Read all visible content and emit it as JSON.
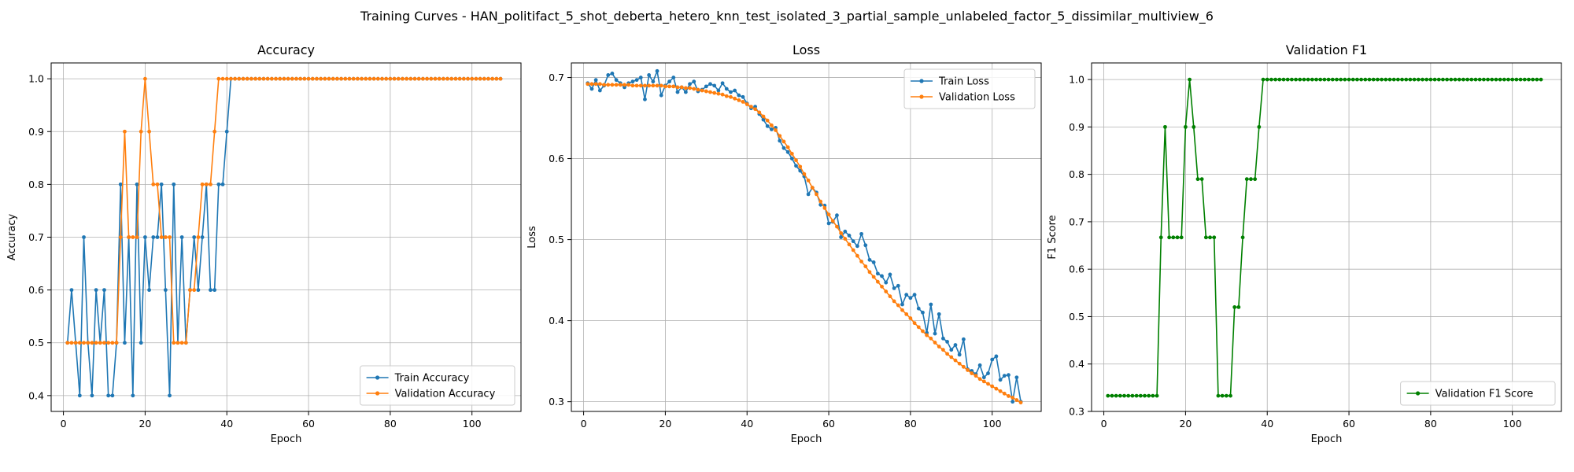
{
  "figure": {
    "suptitle": "Training Curves - HAN_politifact_5_shot_deberta_hetero_knn_test_isolated_3_partial_sample_unlabeled_factor_5_dissimilar_multiview_6"
  },
  "chart_data": [
    {
      "type": "line",
      "title": "Accuracy",
      "xlabel": "Epoch",
      "ylabel": "Accuracy",
      "xlim": [
        -3,
        112
      ],
      "ylim": [
        0.37,
        1.03
      ],
      "xticks": [
        0,
        20,
        40,
        60,
        80,
        100
      ],
      "yticks": [
        0.4,
        0.5,
        0.6,
        0.7,
        0.8,
        0.9,
        1.0
      ],
      "ytick_labels": [
        "0.4",
        "0.5",
        "0.6",
        "0.7",
        "0.8",
        "0.9",
        "1.0"
      ],
      "grid": true,
      "legend_position": "lower-right",
      "series": [
        {
          "name": "Train Accuracy",
          "color": "#1f77b4",
          "x_start": 1,
          "values": [
            0.5,
            0.6,
            0.5,
            0.4,
            0.7,
            0.5,
            0.4,
            0.6,
            0.5,
            0.6,
            0.4,
            0.4,
            0.5,
            0.8,
            0.5,
            0.7,
            0.4,
            0.8,
            0.5,
            0.7,
            0.6,
            0.7,
            0.7,
            0.8,
            0.6,
            0.4,
            0.8,
            0.5,
            0.7,
            0.5,
            0.6,
            0.7,
            0.6,
            0.7,
            0.8,
            0.6,
            0.6,
            0.8,
            0.8,
            0.9,
            1.0,
            1.0,
            1.0,
            1.0,
            1.0,
            1.0,
            1.0,
            1.0,
            1.0,
            1.0,
            1.0,
            1.0,
            1.0,
            1.0,
            1.0,
            1.0,
            1.0,
            1.0,
            1.0,
            1.0,
            1.0,
            1.0,
            1.0,
            1.0,
            1.0,
            1.0,
            1.0,
            1.0,
            1.0,
            1.0,
            1.0,
            1.0,
            1.0,
            1.0,
            1.0,
            1.0,
            1.0,
            1.0,
            1.0,
            1.0,
            1.0,
            1.0,
            1.0,
            1.0,
            1.0,
            1.0,
            1.0,
            1.0,
            1.0,
            1.0,
            1.0,
            1.0,
            1.0,
            1.0,
            1.0,
            1.0,
            1.0,
            1.0,
            1.0,
            1.0,
            1.0,
            1.0,
            1.0,
            1.0,
            1.0,
            1.0,
            1.0
          ]
        },
        {
          "name": "Validation Accuracy",
          "color": "#ff7f0e",
          "x_start": 1,
          "values": [
            0.5,
            0.5,
            0.5,
            0.5,
            0.5,
            0.5,
            0.5,
            0.5,
            0.5,
            0.5,
            0.5,
            0.5,
            0.5,
            0.7,
            0.9,
            0.7,
            0.7,
            0.7,
            0.9,
            1.0,
            0.9,
            0.8,
            0.8,
            0.7,
            0.7,
            0.7,
            0.5,
            0.5,
            0.5,
            0.5,
            0.6,
            0.6,
            0.7,
            0.8,
            0.8,
            0.8,
            0.9,
            1.0,
            1.0,
            1.0,
            1.0,
            1.0,
            1.0,
            1.0,
            1.0,
            1.0,
            1.0,
            1.0,
            1.0,
            1.0,
            1.0,
            1.0,
            1.0,
            1.0,
            1.0,
            1.0,
            1.0,
            1.0,
            1.0,
            1.0,
            1.0,
            1.0,
            1.0,
            1.0,
            1.0,
            1.0,
            1.0,
            1.0,
            1.0,
            1.0,
            1.0,
            1.0,
            1.0,
            1.0,
            1.0,
            1.0,
            1.0,
            1.0,
            1.0,
            1.0,
            1.0,
            1.0,
            1.0,
            1.0,
            1.0,
            1.0,
            1.0,
            1.0,
            1.0,
            1.0,
            1.0,
            1.0,
            1.0,
            1.0,
            1.0,
            1.0,
            1.0,
            1.0,
            1.0,
            1.0,
            1.0,
            1.0,
            1.0,
            1.0,
            1.0,
            1.0,
            1.0
          ]
        }
      ]
    },
    {
      "type": "line",
      "title": "Loss",
      "xlabel": "Epoch",
      "ylabel": "Loss",
      "xlim": [
        -3,
        112
      ],
      "ylim": [
        0.288,
        0.718
      ],
      "xticks": [
        0,
        20,
        40,
        60,
        80,
        100
      ],
      "yticks": [
        0.3,
        0.4,
        0.5,
        0.6,
        0.7
      ],
      "ytick_labels": [
        "0.3",
        "0.4",
        "0.5",
        "0.6",
        "0.7"
      ],
      "grid": true,
      "legend_position": "upper-right",
      "series": [
        {
          "name": "Train Loss",
          "color": "#1f77b4",
          "x_start": 1,
          "values": [
            0.693,
            0.686,
            0.697,
            0.684,
            0.69,
            0.703,
            0.705,
            0.697,
            0.693,
            0.688,
            0.693,
            0.695,
            0.697,
            0.7,
            0.673,
            0.703,
            0.695,
            0.708,
            0.678,
            0.69,
            0.695,
            0.7,
            0.682,
            0.688,
            0.682,
            0.692,
            0.695,
            0.683,
            0.685,
            0.689,
            0.692,
            0.69,
            0.684,
            0.693,
            0.686,
            0.682,
            0.684,
            0.678,
            0.676,
            0.668,
            0.662,
            0.664,
            0.655,
            0.648,
            0.64,
            0.636,
            0.638,
            0.622,
            0.613,
            0.608,
            0.6,
            0.591,
            0.585,
            0.578,
            0.556,
            0.564,
            0.558,
            0.543,
            0.542,
            0.52,
            0.522,
            0.53,
            0.503,
            0.51,
            0.505,
            0.498,
            0.492,
            0.507,
            0.493,
            0.475,
            0.472,
            0.458,
            0.455,
            0.447,
            0.457,
            0.44,
            0.443,
            0.42,
            0.432,
            0.428,
            0.432,
            0.415,
            0.41,
            0.385,
            0.42,
            0.384,
            0.408,
            0.378,
            0.374,
            0.364,
            0.37,
            0.358,
            0.377,
            0.34,
            0.338,
            0.334,
            0.345,
            0.33,
            0.335,
            0.352,
            0.356,
            0.327,
            0.332,
            0.333,
            0.3,
            0.33,
            0.3
          ]
        },
        {
          "name": "Validation Loss",
          "color": "#ff7f0e",
          "x_start": 1,
          "values": [
            0.692,
            0.692,
            0.692,
            0.692,
            0.691,
            0.691,
            0.691,
            0.691,
            0.691,
            0.691,
            0.691,
            0.69,
            0.69,
            0.69,
            0.69,
            0.69,
            0.69,
            0.69,
            0.69,
            0.689,
            0.689,
            0.689,
            0.688,
            0.688,
            0.687,
            0.687,
            0.686,
            0.685,
            0.684,
            0.683,
            0.682,
            0.681,
            0.68,
            0.679,
            0.677,
            0.676,
            0.674,
            0.672,
            0.67,
            0.667,
            0.664,
            0.661,
            0.657,
            0.652,
            0.647,
            0.641,
            0.635,
            0.628,
            0.621,
            0.614,
            0.606,
            0.598,
            0.59,
            0.581,
            0.573,
            0.564,
            0.556,
            0.547,
            0.539,
            0.531,
            0.523,
            0.516,
            0.508,
            0.501,
            0.494,
            0.487,
            0.48,
            0.473,
            0.467,
            0.46,
            0.454,
            0.448,
            0.442,
            0.436,
            0.43,
            0.424,
            0.419,
            0.413,
            0.408,
            0.403,
            0.397,
            0.392,
            0.387,
            0.382,
            0.378,
            0.373,
            0.368,
            0.364,
            0.359,
            0.355,
            0.351,
            0.347,
            0.343,
            0.339,
            0.335,
            0.332,
            0.328,
            0.325,
            0.322,
            0.319,
            0.316,
            0.313,
            0.31,
            0.307,
            0.305,
            0.302,
            0.299
          ]
        }
      ]
    },
    {
      "type": "line",
      "title": "Validation F1",
      "xlabel": "Epoch",
      "ylabel": "F1 Score",
      "xlim": [
        -3,
        112
      ],
      "ylim": [
        0.3,
        1.035
      ],
      "xticks": [
        0,
        20,
        40,
        60,
        80,
        100
      ],
      "yticks": [
        0.3,
        0.4,
        0.5,
        0.6,
        0.7,
        0.8,
        0.9,
        1.0
      ],
      "ytick_labels": [
        "0.3",
        "0.4",
        "0.5",
        "0.6",
        "0.7",
        "0.8",
        "0.9",
        "1.0"
      ],
      "grid": true,
      "legend_position": "lower-right",
      "series": [
        {
          "name": "Validation F1 Score",
          "color": "#008000",
          "x_start": 1,
          "values": [
            0.333,
            0.333,
            0.333,
            0.333,
            0.333,
            0.333,
            0.333,
            0.333,
            0.333,
            0.333,
            0.333,
            0.333,
            0.333,
            0.667,
            0.9,
            0.667,
            0.667,
            0.667,
            0.667,
            0.9,
            1.0,
            0.9,
            0.79,
            0.79,
            0.667,
            0.667,
            0.667,
            0.333,
            0.333,
            0.333,
            0.333,
            0.52,
            0.52,
            0.667,
            0.79,
            0.79,
            0.79,
            0.9,
            1.0,
            1.0,
            1.0,
            1.0,
            1.0,
            1.0,
            1.0,
            1.0,
            1.0,
            1.0,
            1.0,
            1.0,
            1.0,
            1.0,
            1.0,
            1.0,
            1.0,
            1.0,
            1.0,
            1.0,
            1.0,
            1.0,
            1.0,
            1.0,
            1.0,
            1.0,
            1.0,
            1.0,
            1.0,
            1.0,
            1.0,
            1.0,
            1.0,
            1.0,
            1.0,
            1.0,
            1.0,
            1.0,
            1.0,
            1.0,
            1.0,
            1.0,
            1.0,
            1.0,
            1.0,
            1.0,
            1.0,
            1.0,
            1.0,
            1.0,
            1.0,
            1.0,
            1.0,
            1.0,
            1.0,
            1.0,
            1.0,
            1.0,
            1.0,
            1.0,
            1.0,
            1.0,
            1.0,
            1.0,
            1.0,
            1.0,
            1.0,
            1.0,
            1.0
          ]
        }
      ]
    }
  ]
}
